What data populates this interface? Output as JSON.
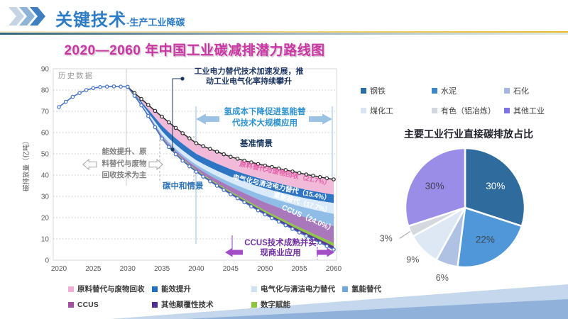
{
  "header": {
    "title": "关键技术",
    "subtitle": "-生产工业降碳"
  },
  "theme": {
    "accent_blue": "#2e7cc3",
    "title_magenta": "#c837a2",
    "chevrons": [
      "#c5d3e3",
      "#8fb4d8",
      "#3e7fc1"
    ],
    "swoosh_light": "#c5d7ec",
    "swoosh_medium": "#8fb1da",
    "hist_line": "#4472c4",
    "baseline_line": "#2b2b2b",
    "neutral_line": "#4472c4"
  },
  "roadmap": {
    "title": "2020—2060 年中国工业碳减排潜力路线图",
    "annotations": {
      "historical": "历史数据",
      "elec": "工业电力替代技术加速发展，推\n动工业电气化率持续攀升",
      "h2": "氢成本下降促进氢能替\n代技术大规模应用",
      "baseline": "基准情景",
      "neutral": "碳中和情景",
      "phase1": "能效提升、原\n料替代与废物\n回收技术为主",
      "ccus": "CCUS技术成熟并实\n现商业应用"
    }
  },
  "pie_section": {
    "title": "主要工业行业直接碳排放占比"
  },
  "chart_data": [
    {
      "type": "area",
      "title": "2020—2060 年中国工业碳减排潜力路线图",
      "xlabel": "",
      "ylabel": "碳排放量（亿吨）",
      "xlim": [
        2020,
        2060
      ],
      "ylim": [
        0,
        90
      ],
      "grid": "dotted-horizontal",
      "x_ticks": [
        2020,
        2025,
        2030,
        2035,
        2040,
        2045,
        2050,
        2055,
        2060
      ],
      "y_ticks": [
        0,
        10,
        20,
        30,
        40,
        50,
        60,
        70,
        80,
        90
      ],
      "historical": {
        "label": "历史数据",
        "years": [
          2020,
          2021,
          2022,
          2023,
          2024,
          2025,
          2026,
          2027,
          2028,
          2029,
          2030
        ],
        "values": [
          72.0,
          74.5,
          76.8,
          78.6,
          80.0,
          80.9,
          81.4,
          81.6,
          81.7,
          81.6,
          81.5
        ]
      },
      "baseline": {
        "label": "基准情景",
        "years": [
          2030,
          2031,
          2032,
          2033,
          2034,
          2035,
          2036,
          2037,
          2038,
          2039,
          2040,
          2041,
          2042,
          2043,
          2044,
          2045,
          2046,
          2047,
          2048,
          2049,
          2050,
          2051,
          2052,
          2053,
          2054,
          2055,
          2056,
          2057,
          2058,
          2059,
          2060
        ],
        "values": [
          81.5,
          78.6,
          75.8,
          73.0,
          70.2,
          67.5,
          64.8,
          62.2,
          59.7,
          57.3,
          55.0,
          53.6,
          52.3,
          51.0,
          49.8,
          48.6,
          47.7,
          46.8,
          46.0,
          45.2,
          44.5,
          43.8,
          43.1,
          42.4,
          41.7,
          41.0,
          40.3,
          39.7,
          39.1,
          38.5,
          38.0
        ]
      },
      "neutral": {
        "label": "碳中和情景",
        "values": [
          81.5,
          77.3,
          72.8,
          67.8,
          62.5,
          57.2,
          53.2,
          49.8,
          46.8,
          44.1,
          41.6,
          39.3,
          37.1,
          35.0,
          33.0,
          31.0,
          29.1,
          27.2,
          25.3,
          23.4,
          21.5,
          19.8,
          18.1,
          16.4,
          14.7,
          13.0,
          11.4,
          9.8,
          8.2,
          6.6,
          5.0
        ]
      },
      "bands": [
        {
          "name": "feedstock-substitution-waste-recycling",
          "legend": "原料替代与废物回收",
          "band_label": "原料替代与废物回收（21.7%）",
          "share_pct": 21.7,
          "color": "#f2bad9",
          "label_color": "#e55fa8",
          "frac_start": 0.45,
          "frac_end": 0.217
        },
        {
          "name": "energy-efficiency",
          "legend": "能效提升",
          "band_label": "",
          "share_pct": null,
          "color": "#2e75c4",
          "label_color": "",
          "frac_start": 0.28,
          "frac_end": 0.12
        },
        {
          "name": "electrification-clean-power",
          "legend": "电气化与清洁电力替代",
          "band_label": "电气化与清洁电力替代（15.4%）",
          "share_pct": 15.4,
          "color": "#d9eafa",
          "label_color": "#ffffff",
          "frac_start": 0.16,
          "frac_end": 0.154
        },
        {
          "name": "hydrogen-substitution",
          "legend": "氢能替代",
          "band_label": "氢能替代（17.7%）",
          "share_pct": 17.7,
          "color": "#8fbde8",
          "label_color": "#ffffff",
          "frac_start": 0.04,
          "frac_end": 0.177
        },
        {
          "name": "ccus",
          "legend": "CCUS",
          "band_label": "CCUS（24.0%）",
          "share_pct": 24.0,
          "color": "#a878ba",
          "label_color": "#ffffff",
          "frac_start": 0.02,
          "frac_end": 0.24
        },
        {
          "name": "digital-empowerment",
          "legend": "数字赋能",
          "band_label": "",
          "share_pct": null,
          "color": "#8dc63f",
          "label_color": "",
          "frac_start": 0.025,
          "frac_end": 0.045
        },
        {
          "name": "other-disruptive-tech",
          "legend": "其他颠覆性技术",
          "band_label": "",
          "share_pct": null,
          "color": "#5e3597",
          "label_color": "",
          "frac_start": 0.025,
          "frac_end": 0.047
        }
      ],
      "legend_items": [
        {
          "name": "feedstock-substitution-waste-recycling",
          "label": "原料替代与废物回收",
          "color": "#f0b0d5"
        },
        {
          "name": "energy-efficiency",
          "label": "能效提升",
          "color": "#2570c0"
        },
        {
          "name": "electrification-clean-power",
          "label": "电气化与清洁电力替代",
          "color": "#cfe3f5"
        },
        {
          "name": "hydrogen-substitution",
          "label": "氢能替代",
          "color": "#6fa8dc"
        },
        {
          "name": "ccus",
          "label": "CCUS",
          "color": "#a0529e"
        },
        {
          "name": "other-disruptive-tech",
          "label": "其他颠覆性技术",
          "color": "#512d8f"
        },
        {
          "name": "digital-empowerment",
          "label": "数字赋能",
          "color": "#8cc63e"
        }
      ]
    },
    {
      "type": "pie",
      "title": "主要工业行业直接碳排放占比",
      "start_angle_deg_from_top": 0,
      "direction": "clockwise",
      "slices": [
        {
          "name": "steel",
          "label": "钢铁",
          "value": 30,
          "pct_label": "30%",
          "color": "#2f6b9d",
          "legend_color": "#2f6b9d",
          "label_color": "#ffffff",
          "label_pos": "inside"
        },
        {
          "name": "cement",
          "label": "水泥",
          "value": 22,
          "pct_label": "22%",
          "color": "#4f97d8",
          "legend_color": "#3f86c9",
          "label_color": "#404850",
          "label_pos": "inside"
        },
        {
          "name": "petrochemical",
          "label": "石化",
          "value": 6,
          "pct_label": "6%",
          "color": "#b0c2e4",
          "legend_color": "#a4b8e0",
          "label_color": "#595959",
          "label_pos": "outside"
        },
        {
          "name": "coal-chemical",
          "label": "煤化工",
          "value": 9,
          "pct_label": "9%",
          "color": "#dde8f4",
          "legend_color": "#d9e4f1",
          "label_color": "#595959",
          "label_pos": "outside"
        },
        {
          "name": "nonferrous-aluminum",
          "label": "有色（铝冶炼）",
          "value": 3,
          "pct_label": "3%",
          "color": "#d4d8df",
          "legend_color": "#d2d6dd",
          "label_color": "#595959",
          "label_pos": "outside-leader"
        },
        {
          "name": "other-industry",
          "label": "其他工业",
          "value": 30,
          "pct_label": "30%",
          "color": "#9a8de8",
          "legend_color": "#7f73e3",
          "label_color": "#3f3f54",
          "label_pos": "inside"
        }
      ]
    }
  ]
}
